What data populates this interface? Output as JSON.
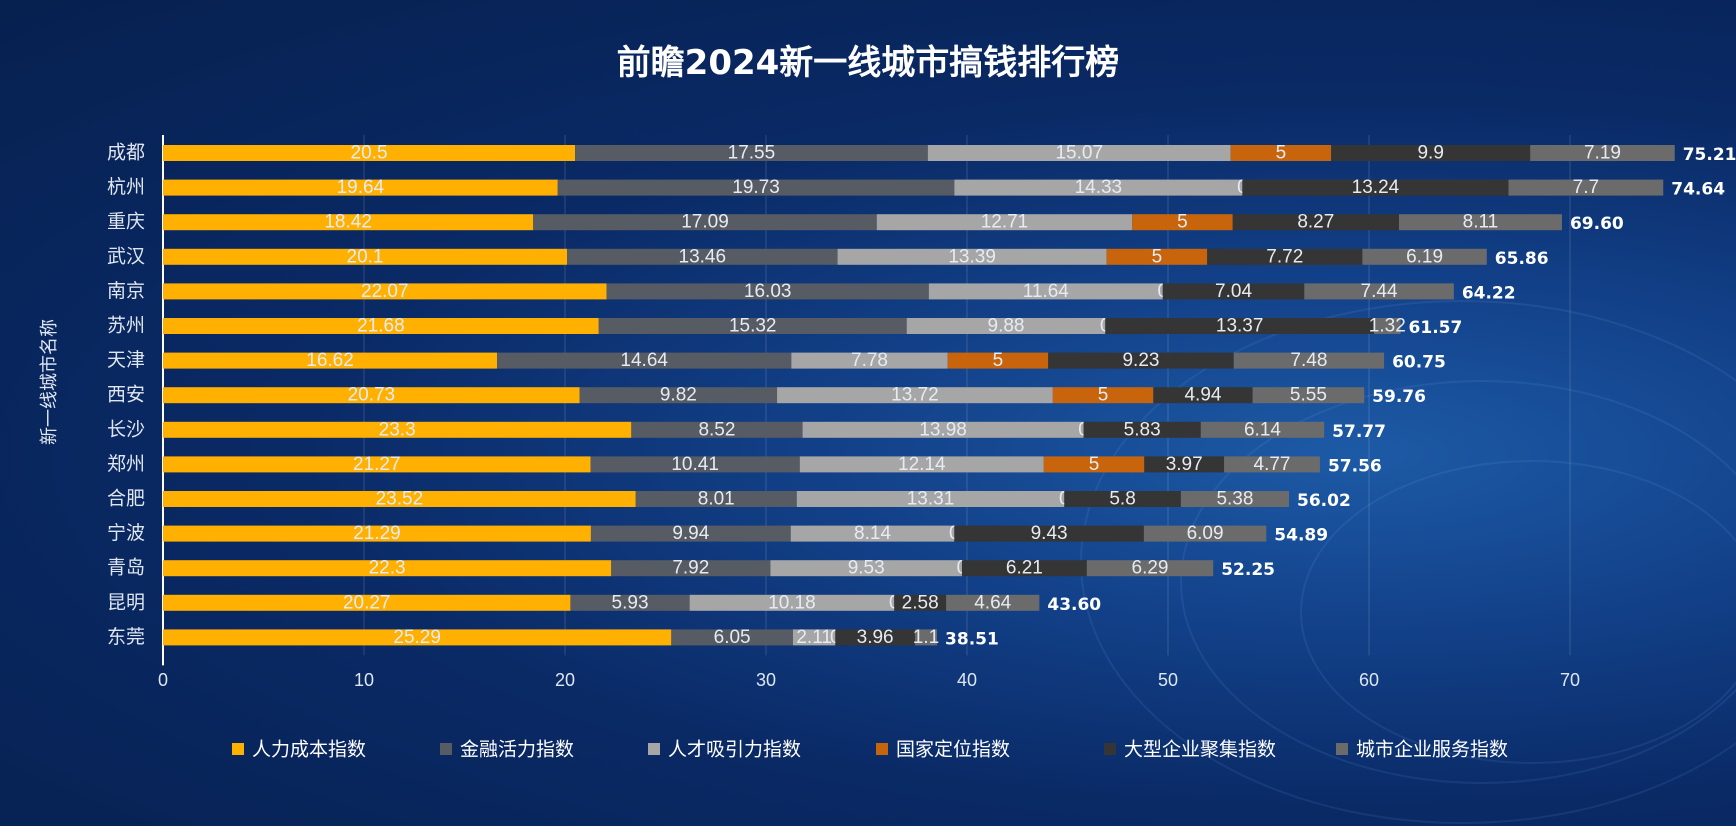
{
  "chart_data": {
    "type": "bar",
    "orientation": "horizontal",
    "stacked": true,
    "title": "前瞻2024新一线城市搞钱排行榜",
    "xlabel": "",
    "ylabel": "新一线城市名称",
    "xlim": [
      0,
      75
    ],
    "xticks": [
      0,
      10,
      20,
      30,
      40,
      50,
      60,
      70
    ],
    "grid": true,
    "legend_position": "bottom",
    "categories": [
      "成都",
      "杭州",
      "重庆",
      "武汉",
      "南京",
      "苏州",
      "天津",
      "西安",
      "长沙",
      "郑州",
      "合肥",
      "宁波",
      "青岛",
      "昆明",
      "东莞"
    ],
    "series": [
      {
        "name": "人力成本指数",
        "color": "#ffb000",
        "values": [
          20.5,
          19.64,
          18.42,
          20.1,
          22.07,
          21.68,
          16.62,
          20.73,
          23.3,
          21.27,
          23.52,
          21.29,
          22.3,
          20.27,
          25.29
        ]
      },
      {
        "name": "金融活力指数",
        "color": "#575b63",
        "values": [
          17.55,
          19.73,
          17.09,
          13.46,
          16.03,
          15.32,
          14.64,
          9.82,
          8.52,
          10.41,
          8.01,
          9.94,
          7.92,
          5.93,
          6.05
        ]
      },
      {
        "name": "人才吸引力指数",
        "color": "#a6a6a6",
        "values": [
          15.07,
          14.33,
          12.71,
          13.39,
          11.64,
          9.88,
          7.78,
          13.72,
          13.98,
          12.14,
          13.31,
          8.14,
          9.53,
          10.18,
          2.11
        ]
      },
      {
        "name": "国家定位指数",
        "color": "#c8650c",
        "values": [
          5,
          0,
          5,
          5,
          0,
          0,
          5,
          5,
          0,
          5,
          0,
          0,
          0,
          0,
          0
        ]
      },
      {
        "name": "大型企业聚集指数",
        "color": "#353535",
        "values": [
          9.9,
          13.24,
          8.27,
          7.72,
          7.04,
          13.37,
          9.23,
          4.94,
          5.83,
          3.97,
          5.8,
          9.43,
          6.21,
          2.58,
          3.96
        ]
      },
      {
        "name": "城市企业服务指数",
        "color": "#6b6b6b",
        "values": [
          7.19,
          7.7,
          8.11,
          6.19,
          7.44,
          1.32,
          7.48,
          5.55,
          6.14,
          4.77,
          5.38,
          6.09,
          6.29,
          4.64,
          1.1
        ]
      }
    ],
    "totals": [
      "75.21",
      "74.64",
      "69.60",
      "65.86",
      "64.22",
      "61.57",
      "60.75",
      "59.76",
      "57.77",
      "57.56",
      "56.02",
      "54.89",
      "52.25",
      "43.60",
      "38.51"
    ]
  }
}
